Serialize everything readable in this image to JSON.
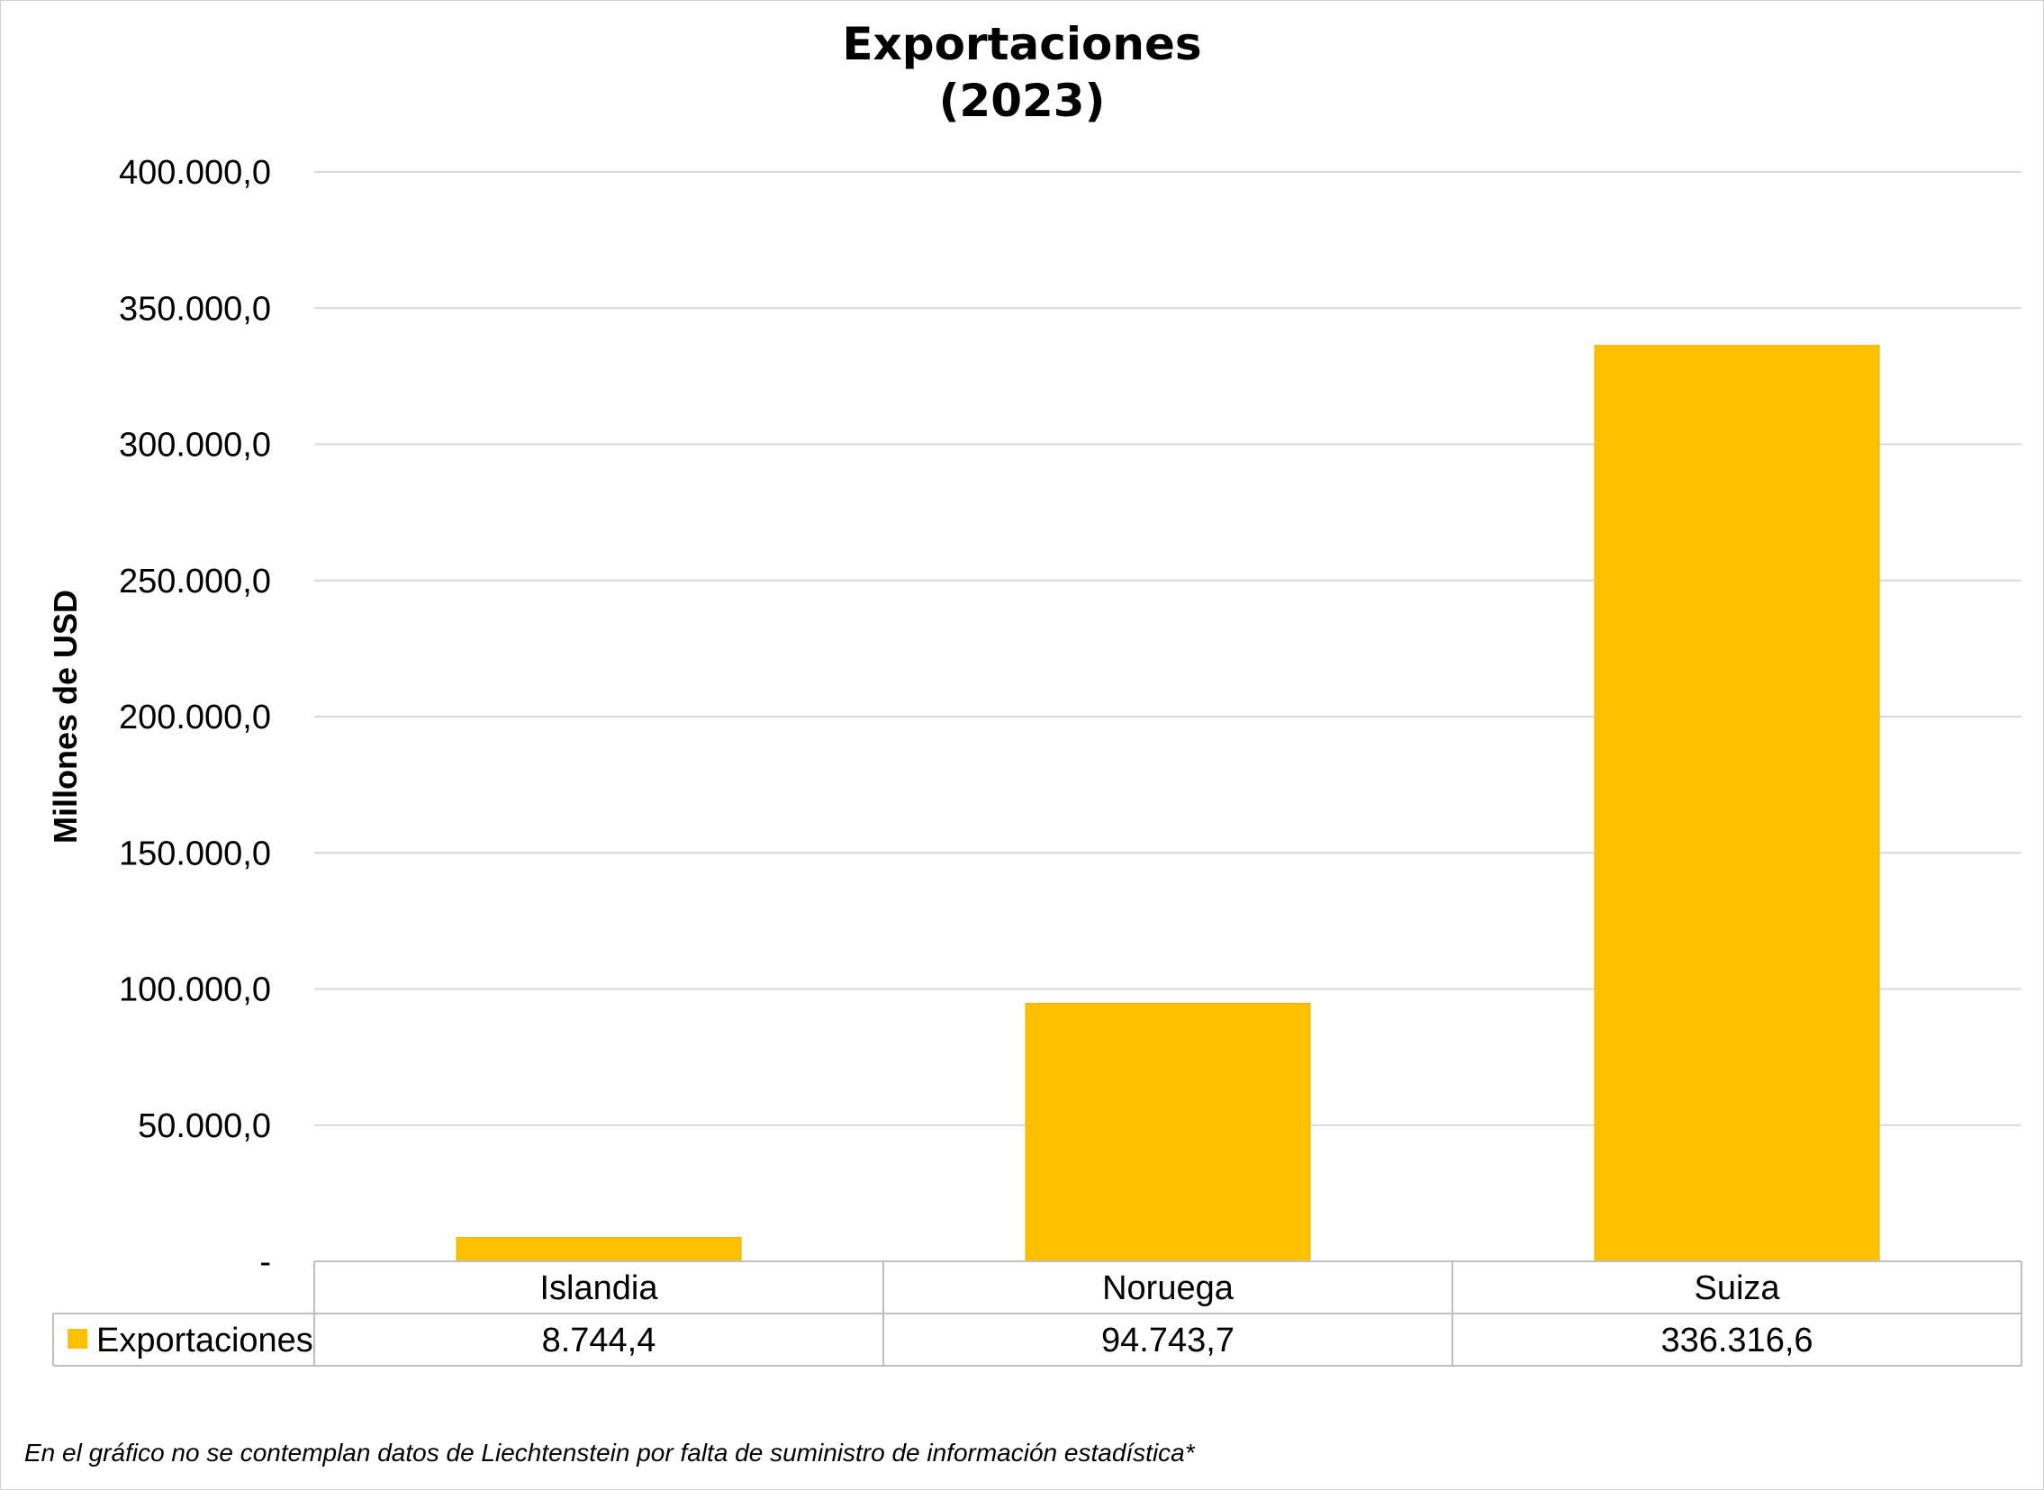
{
  "chart_data": {
    "type": "bar",
    "title": "Exportaciones",
    "subtitle": "(2023)",
    "ylabel": "Millones de USD",
    "xlabel": "",
    "categories": [
      "Islandia",
      "Noruega",
      "Suiza"
    ],
    "series": [
      {
        "name": "Exportaciones",
        "values": [
          8744.4,
          94743.7,
          336316.6
        ],
        "labels": [
          "8.744,4",
          "94.743,7",
          "336.316,6"
        ],
        "color": "#FFC000"
      }
    ],
    "ylim": [
      0,
      400000
    ],
    "yticks": [
      0,
      50000,
      100000,
      150000,
      200000,
      250000,
      300000,
      350000,
      400000
    ],
    "ytick_labels": [
      "-",
      "50.000,0",
      "100.000,0",
      "150.000,0",
      "200.000,0",
      "250.000,0",
      "300.000,0",
      "350.000,0",
      "400.000,0"
    ],
    "grid": true,
    "legend": "data-table",
    "footnote": "En el gráfico no se contemplan datos de Liechtenstein por falta de suministro de información estadística*"
  },
  "colors": {
    "bar": "#FFC000",
    "grid": "#d9d9d9",
    "table_border": "#bfbfbf"
  }
}
